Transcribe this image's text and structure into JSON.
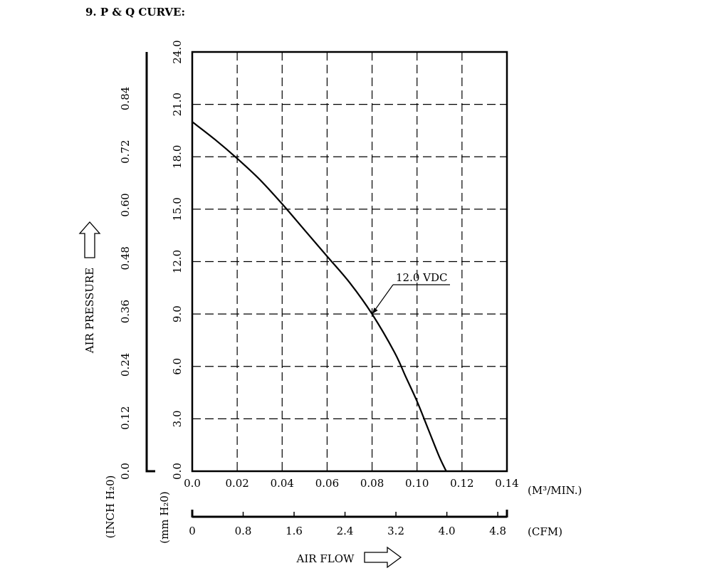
{
  "header": {
    "title": "9. P & Q CURVE:"
  },
  "chart_data": {
    "type": "line",
    "title": "",
    "x_axes": [
      {
        "label": "(M³/MIN.)",
        "ticks": [
          "0.0",
          "0.02",
          "0.04",
          "0.06",
          "0.08",
          "0.10",
          "0.12",
          "0.14"
        ],
        "range": [
          0,
          0.14
        ]
      },
      {
        "label": "(CFM)",
        "ticks": [
          "0",
          "0.8",
          "1.6",
          "2.4",
          "3.2",
          "4.0",
          "4.8"
        ],
        "range": [
          0,
          4.944
        ]
      }
    ],
    "x_title": "AIR FLOW",
    "y_axes": [
      {
        "label": "(mm H₂0)",
        "ticks": [
          "0.0",
          "3.0",
          "6.0",
          "9.0",
          "12.0",
          "15.0",
          "18.0",
          "21.0",
          "24.0"
        ],
        "range": [
          0,
          24
        ]
      },
      {
        "label": "(INCH H₂0)",
        "ticks": [
          "0.0",
          "0.12",
          "0.24",
          "0.36",
          "0.48",
          "0.60",
          "0.72",
          "0.84"
        ],
        "range": [
          0,
          0.9449
        ]
      }
    ],
    "y_title": "AIR PRESSURE",
    "grid": true,
    "series": [
      {
        "name": "12.0 VDC",
        "x": [
          0.0,
          0.01,
          0.02,
          0.03,
          0.04,
          0.05,
          0.06,
          0.07,
          0.08,
          0.09,
          0.095,
          0.1,
          0.105,
          0.11,
          0.113
        ],
        "y": [
          20.0,
          19.0,
          17.9,
          16.7,
          15.3,
          13.8,
          12.3,
          10.8,
          9.0,
          6.8,
          5.4,
          4.0,
          2.4,
          0.8,
          0.0
        ]
      }
    ],
    "annotations": [
      {
        "text": "12.0 VDC",
        "x": 0.08,
        "y": 9.0
      }
    ]
  }
}
